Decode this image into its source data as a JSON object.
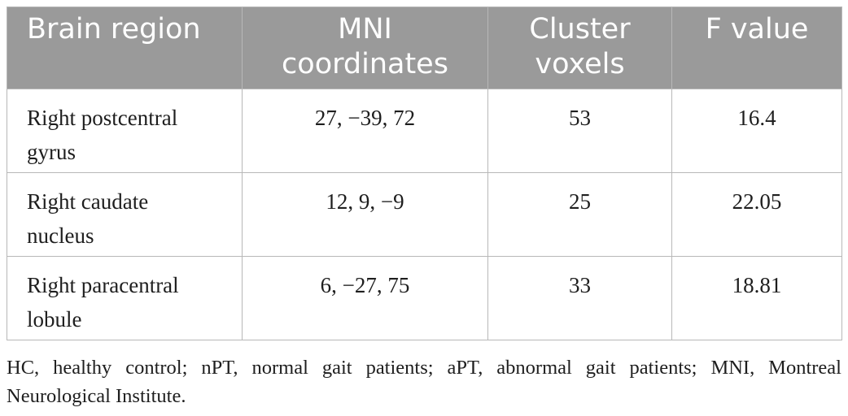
{
  "table": {
    "headers": [
      {
        "line1": "Brain region",
        "line2": ""
      },
      {
        "line1": "MNI",
        "line2": "coordinates"
      },
      {
        "line1": "Cluster",
        "line2": "voxels"
      },
      {
        "line1": "F value",
        "line2": ""
      }
    ],
    "rows": [
      {
        "region_line1": "Right postcentral",
        "region_line2": "gyrus",
        "mni": "27, −39, 72",
        "voxels": "53",
        "f_value": "16.4"
      },
      {
        "region_line1": "Right caudate",
        "region_line2": "nucleus",
        "mni": "12, 9, −9",
        "voxels": "25",
        "f_value": "22.05"
      },
      {
        "region_line1": "Right paracentral",
        "region_line2": "lobule",
        "mni": "6, −27, 75",
        "voxels": "33",
        "f_value": "18.81"
      }
    ]
  },
  "footnote": "HC, healthy control; nPT, normal gait patients; aPT, abnormal gait patients; MNI, Montreal Neurological Institute."
}
